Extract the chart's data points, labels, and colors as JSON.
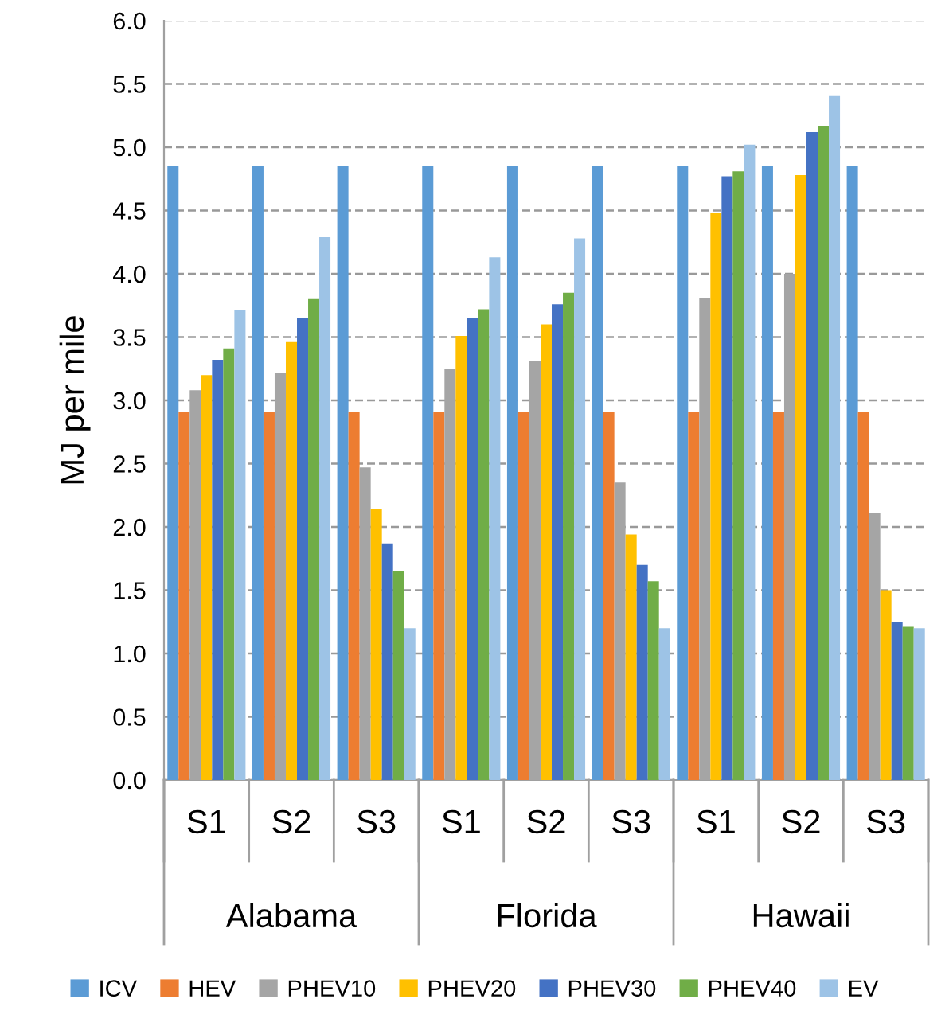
{
  "chart_data": {
    "type": "bar",
    "ylabel": "MJ per mile",
    "categories": [
      "S1",
      "S2",
      "S3",
      "S1",
      "S2",
      "S3",
      "S1",
      "S2",
      "S3"
    ],
    "annotations": [
      "Alabama",
      "Florida",
      "Hawaii"
    ],
    "series": [
      {
        "name": "ICV",
        "color": "#5b9bd5",
        "values": [
          4.85,
          4.85,
          4.85,
          4.85,
          4.85,
          4.85,
          4.85,
          4.85,
          4.85
        ]
      },
      {
        "name": "HEV",
        "color": "#ed7d31",
        "values": [
          2.91,
          2.91,
          2.91,
          2.91,
          2.91,
          2.91,
          2.91,
          2.91,
          2.91
        ]
      },
      {
        "name": "PHEV10",
        "color": "#a5a5a5",
        "values": [
          3.08,
          3.22,
          2.47,
          3.25,
          3.31,
          2.35,
          3.81,
          4.0,
          2.11
        ]
      },
      {
        "name": "PHEV20",
        "color": "#ffc000",
        "values": [
          3.2,
          3.46,
          2.14,
          3.51,
          3.6,
          1.94,
          4.48,
          4.78,
          1.5
        ]
      },
      {
        "name": "PHEV30",
        "color": "#4472c4",
        "values": [
          3.32,
          3.65,
          1.87,
          3.65,
          3.76,
          1.7,
          4.77,
          5.12,
          1.25
        ]
      },
      {
        "name": "PHEV40",
        "color": "#70ad47",
        "values": [
          3.41,
          3.8,
          1.65,
          3.72,
          3.85,
          1.57,
          4.81,
          5.17,
          1.21
        ]
      },
      {
        "name": "EV",
        "color": "#9dc3e6",
        "values": [
          3.71,
          4.29,
          1.2,
          4.13,
          4.28,
          1.2,
          5.02,
          5.41,
          1.2
        ]
      }
    ],
    "ylim": [
      0,
      6
    ],
    "yticks": [
      {
        "value": 0,
        "label": "0.0"
      },
      {
        "value": 0.5,
        "label": "0.5"
      },
      {
        "value": 1,
        "label": "1.0"
      },
      {
        "value": 1.5,
        "label": "1.5"
      },
      {
        "value": 2,
        "label": "2.0"
      },
      {
        "value": 2.5,
        "label": "2.5"
      },
      {
        "value": 3,
        "label": "3.0"
      },
      {
        "value": 3.5,
        "label": "3.5"
      },
      {
        "value": 4,
        "label": "4.0"
      },
      {
        "value": 4.5,
        "label": "4.5"
      },
      {
        "value": 5,
        "label": "5.0"
      },
      {
        "value": 5.5,
        "label": "5.5"
      },
      {
        "value": 6,
        "label": "6.0"
      }
    ],
    "grid": "y",
    "legend": "bottom"
  }
}
